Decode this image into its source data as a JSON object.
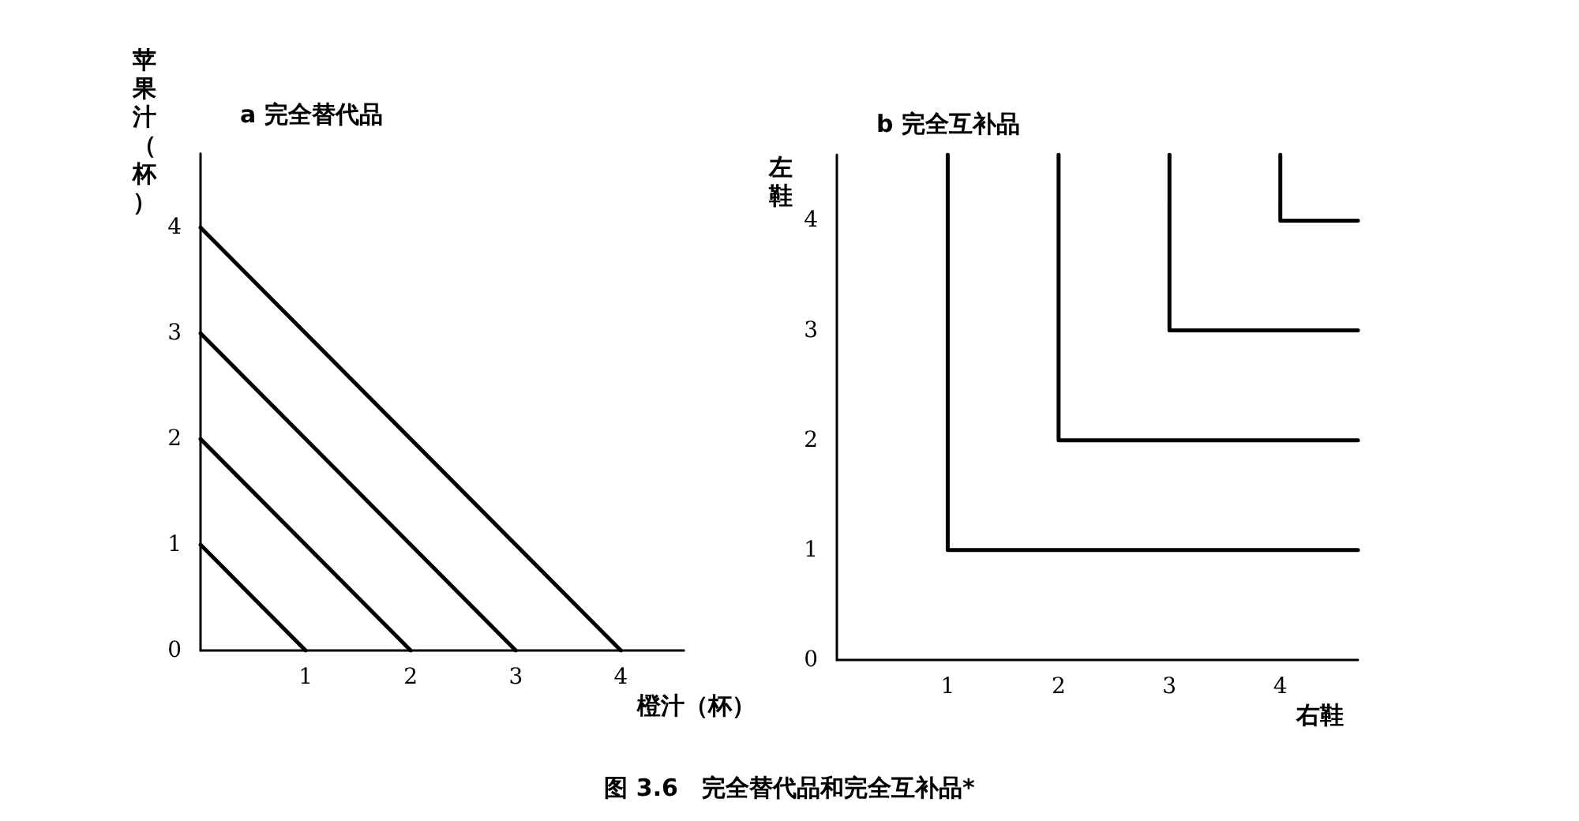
{
  "chart_data": [
    {
      "type": "line",
      "title": "a 完全替代品",
      "xlabel": "橙汁（杯）",
      "ylabel": "苹果汁（杯）",
      "xlim": [
        0,
        4.6
      ],
      "ylim": [
        0,
        4.7
      ],
      "xticks": [
        1,
        2,
        3,
        4
      ],
      "yticks": [
        0,
        1,
        2,
        3,
        4
      ],
      "marker": "none",
      "line_style": "solid",
      "annotations": [
        "图 3.6　完全替代品和完全互补品*"
      ],
      "series": [
        {
          "color": "#000000",
          "x": [
            0,
            1
          ],
          "values": [
            1,
            0
          ]
        },
        {
          "color": "#000000",
          "x": [
            0,
            2
          ],
          "values": [
            2,
            0
          ]
        },
        {
          "color": "#000000",
          "x": [
            0,
            3
          ],
          "values": [
            3,
            0
          ]
        },
        {
          "color": "#000000",
          "x": [
            0,
            4
          ],
          "values": [
            4,
            0
          ]
        }
      ]
    },
    {
      "type": "line",
      "title": "b 完全互补品",
      "xlabel": "右鞋",
      "ylabel": "左鞋",
      "xlim": [
        0,
        4.7
      ],
      "ylim": [
        0,
        4.6
      ],
      "xticks": [
        1,
        2,
        3,
        4
      ],
      "yticks": [
        0,
        1,
        2,
        3,
        4
      ],
      "marker": "none",
      "line_style": "solid",
      "series": [
        {
          "color": "#000000",
          "x": [
            1,
            1,
            4.7
          ],
          "values": [
            4.6,
            1,
            1
          ]
        },
        {
          "color": "#000000",
          "x": [
            2,
            2,
            4.7
          ],
          "values": [
            4.6,
            2,
            2
          ]
        },
        {
          "color": "#000000",
          "x": [
            3,
            3,
            4.7
          ],
          "values": [
            4.6,
            3,
            3
          ]
        },
        {
          "color": "#000000",
          "x": [
            4,
            4,
            4.7
          ],
          "values": [
            4.6,
            4,
            4
          ]
        }
      ]
    }
  ]
}
